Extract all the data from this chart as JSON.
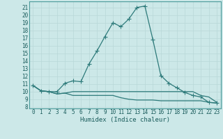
{
  "xlabel": "Humidex (Indice chaleur)",
  "bg_color": "#cce8e8",
  "line_color": "#2d7a7a",
  "grid_color": "#b8d8d8",
  "ylim": [
    7.8,
    21.8
  ],
  "xlim": [
    -0.5,
    23.5
  ],
  "yticks": [
    8,
    9,
    10,
    11,
    12,
    13,
    14,
    15,
    16,
    17,
    18,
    19,
    20,
    21
  ],
  "xticks": [
    0,
    1,
    2,
    3,
    4,
    5,
    6,
    7,
    8,
    9,
    10,
    11,
    12,
    13,
    14,
    15,
    16,
    17,
    18,
    19,
    20,
    21,
    22,
    23
  ],
  "series1_x": [
    0,
    1,
    2,
    3,
    4,
    5,
    6,
    7,
    8,
    9,
    10,
    11,
    12,
    13,
    14,
    15,
    16,
    17,
    18,
    19,
    20,
    21,
    22,
    23
  ],
  "series1_y": [
    10.8,
    10.1,
    10.0,
    10.0,
    11.1,
    11.4,
    11.3,
    13.6,
    15.3,
    17.2,
    19.0,
    18.5,
    19.5,
    21.0,
    21.2,
    16.8,
    12.1,
    11.1,
    10.5,
    9.9,
    9.5,
    9.3,
    8.6,
    8.5
  ],
  "series2_x": [
    0,
    1,
    2,
    3,
    4,
    5,
    6,
    7,
    8,
    9,
    10,
    11,
    12,
    13,
    14,
    15,
    16,
    17,
    18,
    19,
    20,
    21,
    22,
    23
  ],
  "series2_y": [
    10.8,
    10.1,
    10.0,
    9.7,
    9.8,
    10.0,
    10.0,
    10.0,
    10.0,
    10.0,
    10.0,
    10.0,
    10.0,
    10.0,
    10.0,
    10.0,
    10.0,
    10.0,
    10.0,
    10.0,
    10.0,
    9.5,
    9.3,
    8.6
  ],
  "series3_x": [
    0,
    1,
    2,
    3,
    4,
    5,
    6,
    7,
    8,
    9,
    10,
    11,
    12,
    13,
    14,
    15,
    16,
    17,
    18,
    19,
    20,
    21,
    22,
    23
  ],
  "series3_y": [
    10.8,
    10.1,
    10.0,
    9.7,
    9.8,
    9.5,
    9.5,
    9.5,
    9.5,
    9.5,
    9.5,
    9.2,
    9.0,
    8.9,
    8.9,
    8.9,
    8.8,
    8.8,
    8.8,
    8.8,
    8.8,
    8.8,
    8.6,
    8.5
  ],
  "marker": "+",
  "markersize": 4.0,
  "linewidth": 0.9,
  "tick_fontsize": 5.5,
  "xlabel_fontsize": 6.5
}
